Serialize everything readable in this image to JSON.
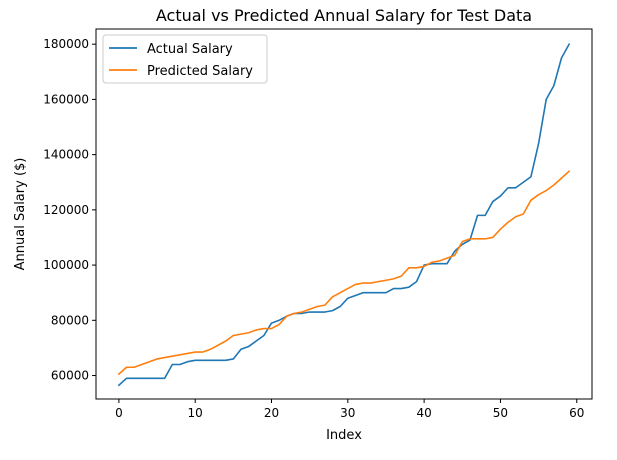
{
  "chart_data": {
    "type": "line",
    "title": "Actual vs Predicted Annual Salary for Test Data",
    "xlabel": "Index",
    "ylabel": "Annual Salary ($)",
    "xlim": [
      -3,
      62
    ],
    "ylim": [
      51500,
      185500
    ],
    "xticks": [
      0,
      10,
      20,
      30,
      40,
      50,
      60
    ],
    "xtick_labels": [
      "0",
      "10",
      "20",
      "30",
      "40",
      "50",
      "60"
    ],
    "yticks": [
      60000,
      80000,
      100000,
      120000,
      140000,
      160000,
      180000
    ],
    "ytick_labels": [
      "60000",
      "80000",
      "100000",
      "120000",
      "140000",
      "160000",
      "180000"
    ],
    "grid": false,
    "legend_position": "top-left",
    "x": [
      0,
      1,
      2,
      3,
      4,
      5,
      6,
      7,
      8,
      9,
      10,
      11,
      12,
      13,
      14,
      15,
      16,
      17,
      18,
      19,
      20,
      21,
      22,
      23,
      24,
      25,
      26,
      27,
      28,
      29,
      30,
      31,
      32,
      33,
      34,
      35,
      36,
      37,
      38,
      39,
      40,
      41,
      42,
      43,
      44,
      45,
      46,
      47,
      48,
      49,
      50,
      51,
      52,
      53,
      54,
      55,
      56,
      57,
      58,
      59
    ],
    "series": [
      {
        "name": "Actual Salary",
        "color": "#1f77b4",
        "values": [
          56500,
          59000,
          59000,
          59000,
          59000,
          59000,
          59000,
          64000,
          64000,
          65000,
          65500,
          65500,
          65500,
          65500,
          65500,
          66000,
          69500,
          70500,
          72500,
          74500,
          79000,
          80000,
          81500,
          82500,
          82500,
          83000,
          83000,
          83000,
          83500,
          85000,
          88000,
          89000,
          90000,
          90000,
          90000,
          90000,
          91500,
          91500,
          92000,
          94000,
          100000,
          100500,
          100500,
          100500,
          105000,
          107500,
          109000,
          118000,
          118000,
          123000,
          125000,
          128000,
          128000,
          130000,
          132000,
          144000,
          160000,
          165000,
          175000,
          180000
        ]
      },
      {
        "name": "Predicted Salary",
        "color": "#ff7f0e",
        "values": [
          60500,
          63000,
          63000,
          64000,
          65000,
          66000,
          66500,
          67000,
          67500,
          68000,
          68500,
          68500,
          69500,
          71000,
          72500,
          74500,
          75000,
          75500,
          76500,
          77000,
          77000,
          78500,
          81500,
          82500,
          83000,
          84000,
          85000,
          85500,
          88500,
          90000,
          91500,
          93000,
          93500,
          93500,
          94000,
          94500,
          95000,
          96000,
          99000,
          99000,
          99500,
          101000,
          101500,
          102500,
          103500,
          108500,
          109500,
          109500,
          109500,
          110000,
          113000,
          115500,
          117500,
          118500,
          123500,
          125500,
          127000,
          129000,
          131500,
          134000
        ]
      }
    ]
  }
}
